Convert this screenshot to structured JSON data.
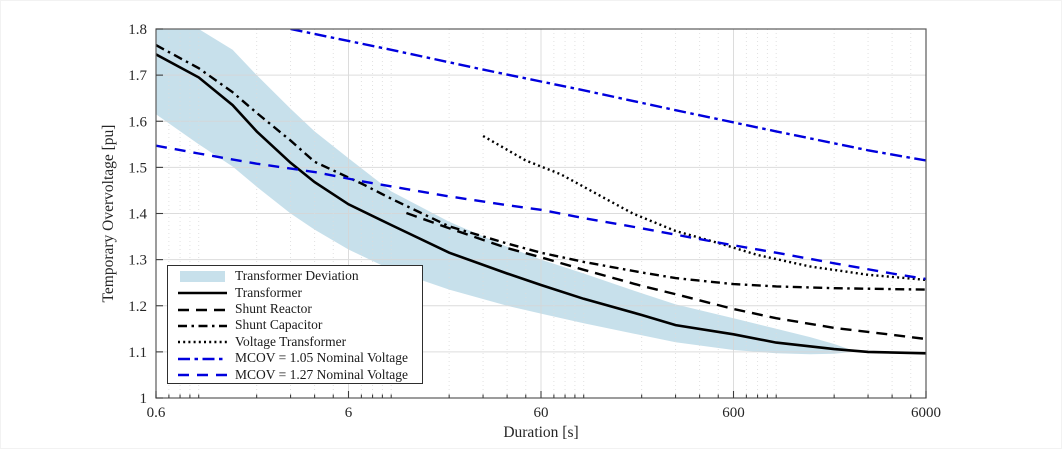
{
  "figure": {
    "background": "#ffffff"
  },
  "colors": {
    "band_fill": "#c7e0eb",
    "black_line": "#000000",
    "blue_line": "#0000dd",
    "grid_major": "#d6d6d6",
    "grid_minor": "#dcdcdc",
    "axis_box": "#5a5a5a",
    "tick_text": "#262626"
  },
  "legend": {
    "entries": [
      {
        "label": "Transformer Deviation",
        "series": "transformer-deviation"
      },
      {
        "label": "Transformer",
        "series": "transformer"
      },
      {
        "label": "Shunt Reactor",
        "series": "shunt-reactor"
      },
      {
        "label": "Shunt Capacitor",
        "series": "shunt-capacitor"
      },
      {
        "label": "Voltage Transformer",
        "series": "voltage-transformer"
      },
      {
        "label": "MCOV = 1.05 Nominal Voltage",
        "series": "mcov-105"
      },
      {
        "label": "MCOV = 1.27 Nominal Voltage",
        "series": "mcov-127"
      }
    ]
  },
  "chart_data": {
    "type": "line",
    "title": "",
    "xlabel": "Duration [s]",
    "ylabel": "Temporary Overvoltage [pu]",
    "xscale": "log",
    "xlim": [
      0.6,
      6000
    ],
    "ylim": [
      1,
      1.8
    ],
    "grid": true,
    "legend_position": "lower left",
    "x_ticks": [
      0.6,
      6,
      60,
      600,
      6000
    ],
    "x_tick_labels": [
      "0.6",
      "6",
      "60",
      "600",
      "6000"
    ],
    "y_ticks": [
      1,
      1.1,
      1.2,
      1.3,
      1.4,
      1.5,
      1.6,
      1.7,
      1.8
    ],
    "y_tick_labels": [
      "1",
      "1.1",
      "1.2",
      "1.3",
      "1.4",
      "1.5",
      "1.6",
      "1.7",
      "1.8"
    ],
    "series": [
      {
        "key": "transformer-deviation",
        "name": "Transformer Deviation",
        "kind": "band",
        "color": "#c7e0eb",
        "x": [
          0.6,
          1,
          1.5,
          2,
          3,
          4,
          6,
          10,
          20,
          40,
          60,
          100,
          200,
          300,
          600,
          1000,
          1500,
          2000,
          2500
        ],
        "y_upper": [
          1.8,
          1.8,
          1.755,
          1.7,
          1.627,
          1.578,
          1.52,
          1.448,
          1.382,
          1.328,
          1.3,
          1.27,
          1.227,
          1.203,
          1.173,
          1.15,
          1.132,
          1.117,
          1.103
        ],
        "y_lower": [
          1.615,
          1.55,
          1.502,
          1.458,
          1.4,
          1.365,
          1.322,
          1.278,
          1.235,
          1.2,
          1.183,
          1.162,
          1.136,
          1.121,
          1.104,
          1.097,
          1.095,
          1.096,
          1.1
        ]
      },
      {
        "key": "transformer",
        "name": "Transformer",
        "kind": "line",
        "style": "solid",
        "color": "#000000",
        "x": [
          0.6,
          1,
          1.5,
          2,
          3,
          4,
          6,
          10,
          20,
          40,
          60,
          100,
          200,
          300,
          600,
          1000,
          2000,
          3000,
          6000
        ],
        "y": [
          1.745,
          1.695,
          1.635,
          1.578,
          1.51,
          1.468,
          1.42,
          1.375,
          1.315,
          1.27,
          1.245,
          1.215,
          1.18,
          1.158,
          1.138,
          1.12,
          1.106,
          1.1,
          1.097
        ]
      },
      {
        "key": "shunt-reactor",
        "name": "Shunt Reactor",
        "kind": "line",
        "style": "dashed",
        "color": "#000000",
        "x": [
          12,
          20,
          40,
          60,
          100,
          200,
          300,
          600,
          1000,
          2000,
          4000,
          6000
        ],
        "y": [
          1.401,
          1.368,
          1.325,
          1.305,
          1.278,
          1.243,
          1.225,
          1.193,
          1.173,
          1.152,
          1.137,
          1.128
        ]
      },
      {
        "key": "shunt-capacitor",
        "name": "Shunt Capacitor",
        "kind": "line",
        "style": "dashdot",
        "color": "#000000",
        "x": [
          0.6,
          1,
          1.5,
          2,
          3,
          4,
          6,
          7,
          10,
          20,
          40,
          60,
          100,
          200,
          300,
          600,
          1000,
          2000,
          4000,
          6000
        ],
        "y": [
          1.765,
          1.715,
          1.663,
          1.618,
          1.558,
          1.512,
          1.478,
          1.465,
          1.432,
          1.372,
          1.335,
          1.315,
          1.295,
          1.272,
          1.26,
          1.247,
          1.242,
          1.238,
          1.236,
          1.235
        ]
      },
      {
        "key": "voltage-transformer",
        "name": "Voltage Transformer",
        "kind": "line",
        "style": "dotted",
        "color": "#000000",
        "x": [
          30,
          50,
          76,
          120,
          180,
          300,
          500,
          800,
          1500,
          3000,
          6000
        ],
        "y": [
          1.568,
          1.515,
          1.485,
          1.44,
          1.4,
          1.362,
          1.336,
          1.31,
          1.285,
          1.267,
          1.256
        ]
      },
      {
        "key": "mcov-105",
        "name": "MCOV = 1.05 Nominal Voltage",
        "kind": "line",
        "style": "dashdot",
        "color": "#0000dd",
        "x": [
          3,
          10,
          30,
          100,
          300,
          1000,
          3000,
          6000
        ],
        "y": [
          1.8,
          1.755,
          1.712,
          1.667,
          1.624,
          1.578,
          1.537,
          1.515
        ]
      },
      {
        "key": "mcov-127",
        "name": "MCOV = 1.27 Nominal Voltage",
        "kind": "line",
        "style": "dashed",
        "color": "#0000dd",
        "x": [
          0.6,
          1,
          2,
          4,
          7,
          12,
          20,
          40,
          60,
          100,
          200,
          500,
          1000,
          2000,
          4000,
          6000
        ],
        "y": [
          1.547,
          1.53,
          1.508,
          1.49,
          1.47,
          1.453,
          1.437,
          1.418,
          1.408,
          1.39,
          1.368,
          1.337,
          1.315,
          1.292,
          1.27,
          1.258
        ]
      }
    ]
  }
}
